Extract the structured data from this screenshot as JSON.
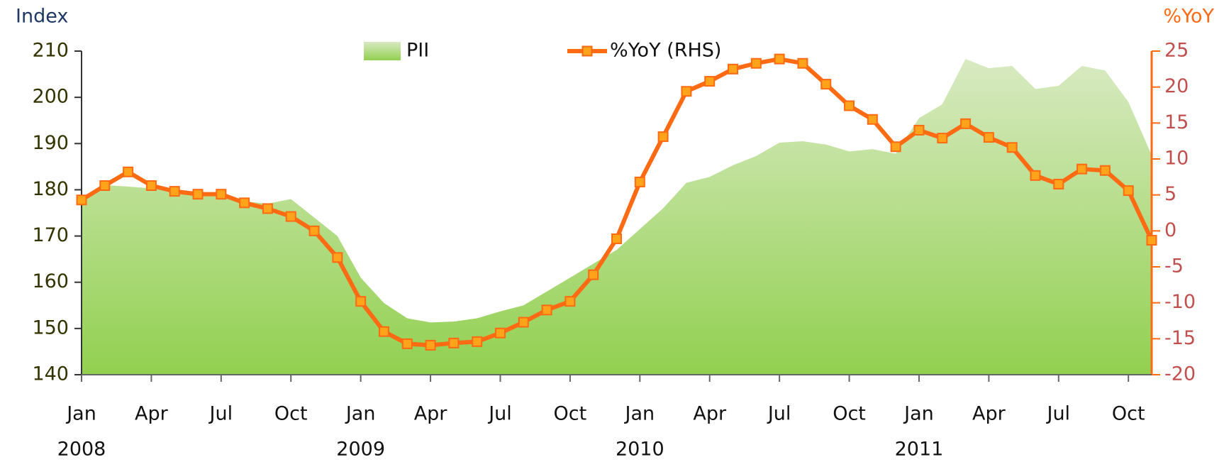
{
  "chart_data": {
    "type": "combo",
    "y_axis_title": "Index",
    "y2_axis_title": "%YoY",
    "categories": [
      "Jan",
      null,
      null,
      "Apr",
      null,
      null,
      "Jul",
      null,
      null,
      "Oct",
      null,
      null,
      "Jan",
      null,
      null,
      "Apr",
      null,
      null,
      "Jul",
      null,
      null,
      "Oct",
      null,
      null,
      "Jan",
      null,
      null,
      "Apr",
      null,
      null,
      "Jul",
      null,
      null,
      "Oct",
      null,
      null,
      "Jan",
      null,
      null,
      "Apr",
      null,
      null,
      "Jul",
      null,
      null,
      "Oct",
      null
    ],
    "year_labels": [
      "2008",
      "2009",
      "2010",
      "2011"
    ],
    "series": [
      {
        "name": "PII",
        "type": "area",
        "color": "#92d050",
        "color_top": "#d8eac2",
        "values": [
          178,
          181,
          180.7,
          180.3,
          180,
          179,
          178.5,
          177.5,
          177,
          178,
          174,
          170,
          161,
          155.5,
          152.2,
          151.3,
          151.5,
          152.2,
          153.7,
          155,
          158,
          161,
          164,
          167,
          171.5,
          176,
          181.5,
          182.8,
          185.3,
          187.3,
          190.2,
          190.5,
          189.8,
          188.3,
          188.8,
          187.8,
          195.5,
          198.5,
          208.3,
          206.3,
          206.8,
          201.8,
          202.5,
          206.8,
          205.8,
          199,
          187.5
        ]
      },
      {
        "name": "%YoY (RHS)",
        "type": "line",
        "axis": "y2",
        "color": "#ff6a13",
        "marker_color": "#ffa31a",
        "values": [
          4.3,
          6.3,
          8.2,
          6.3,
          5.5,
          5.1,
          5.1,
          3.9,
          3.1,
          2.0,
          0,
          -3.7,
          -9.8,
          -14,
          -15.7,
          -15.9,
          -15.6,
          -15.4,
          -14.2,
          -12.7,
          -11,
          -9.8,
          -6.1,
          -1.1,
          6.8,
          13.1,
          19.4,
          20.8,
          22.5,
          23.3,
          23.9,
          23.3,
          20.4,
          17.4,
          15.5,
          11.7,
          14,
          12.9,
          14.9,
          13,
          11.6,
          7.7,
          6.5,
          8.6,
          8.4,
          5.6,
          -1.3
        ]
      }
    ],
    "ylim": [
      140,
      210
    ],
    "yticks": [
      140,
      150,
      160,
      170,
      180,
      190,
      200,
      210
    ],
    "y2lim": [
      -20,
      25
    ],
    "y2ticks": [
      -20,
      -15,
      -10,
      -5,
      0,
      5,
      10,
      15,
      20,
      25
    ]
  }
}
